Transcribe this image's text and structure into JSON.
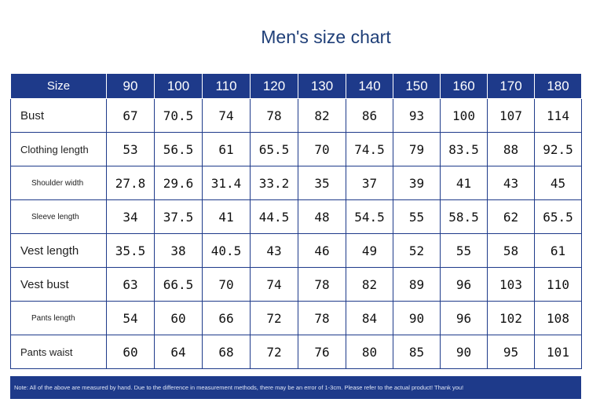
{
  "title": "Men's size chart",
  "table": {
    "header_label": "Size",
    "sizes": [
      "90",
      "100",
      "110",
      "120",
      "130",
      "140",
      "150",
      "160",
      "170",
      "180"
    ],
    "rows": [
      {
        "label": "Bust",
        "values": [
          "67",
          "70.5",
          "74",
          "78",
          "82",
          "86",
          "93",
          "100",
          "107",
          "114"
        ]
      },
      {
        "label": "Clothing length",
        "values": [
          "53",
          "56.5",
          "61",
          "65.5",
          "70",
          "74.5",
          "79",
          "83.5",
          "88",
          "92.5"
        ]
      },
      {
        "label": "Shoulder width",
        "values": [
          "27.8",
          "29.6",
          "31.4",
          "33.2",
          "35",
          "37",
          "39",
          "41",
          "43",
          "45"
        ]
      },
      {
        "label": "Sleeve length",
        "values": [
          "34",
          "37.5",
          "41",
          "44.5",
          "48",
          "54.5",
          "55",
          "58.5",
          "62",
          "65.5"
        ]
      },
      {
        "label": "Vest length",
        "values": [
          "35.5",
          "38",
          "40.5",
          "43",
          "46",
          "49",
          "52",
          "55",
          "58",
          "61"
        ]
      },
      {
        "label": "Vest bust",
        "values": [
          "63",
          "66.5",
          "70",
          "74",
          "78",
          "82",
          "89",
          "96",
          "103",
          "110"
        ]
      },
      {
        "label": "Pants length",
        "values": [
          "54",
          "60",
          "66",
          "72",
          "78",
          "84",
          "90",
          "96",
          "102",
          "108"
        ]
      },
      {
        "label": "Pants waist",
        "values": [
          "60",
          "64",
          "68",
          "72",
          "76",
          "80",
          "85",
          "90",
          "95",
          "101"
        ]
      }
    ]
  },
  "note": "Note: All of the above are measured by hand. Due to the difference in measurement methods, there may be an error of 1-3cm. Please refer to the actual product! Thank you!"
}
